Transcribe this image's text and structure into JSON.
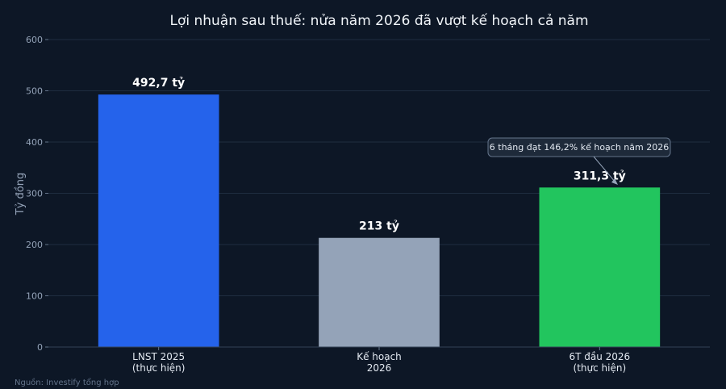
{
  "chart_data": {
    "type": "bar",
    "title": "Lợi nhuận sau thuế: nửa năm 2026 đã vượt kế hoạch cả năm",
    "ylabel": "Tỷ đồng",
    "xlabel": "",
    "ylim": [
      0,
      600
    ],
    "yticks": [
      "0",
      "100",
      "200",
      "300",
      "400",
      "500",
      "600"
    ],
    "grid": true,
    "categories": [
      [
        "LNST 2025",
        "(thực hiện)"
      ],
      [
        "Kế hoạch",
        "2026"
      ],
      [
        "6T đầu 2026",
        "(thực hiện)"
      ]
    ],
    "values": [
      492.7,
      213,
      311.3
    ],
    "value_labels": [
      "492,7 tỷ",
      "213 tỷ",
      "311,3 tỷ"
    ],
    "colors": [
      "#2563eb",
      "#94a3b8",
      "#22c55e"
    ],
    "annotation": {
      "text": "6 tháng đạt 146,2% kế hoạch năm 2026",
      "target_index": 2
    },
    "source": "Nguồn: Investify tổng hợp"
  }
}
